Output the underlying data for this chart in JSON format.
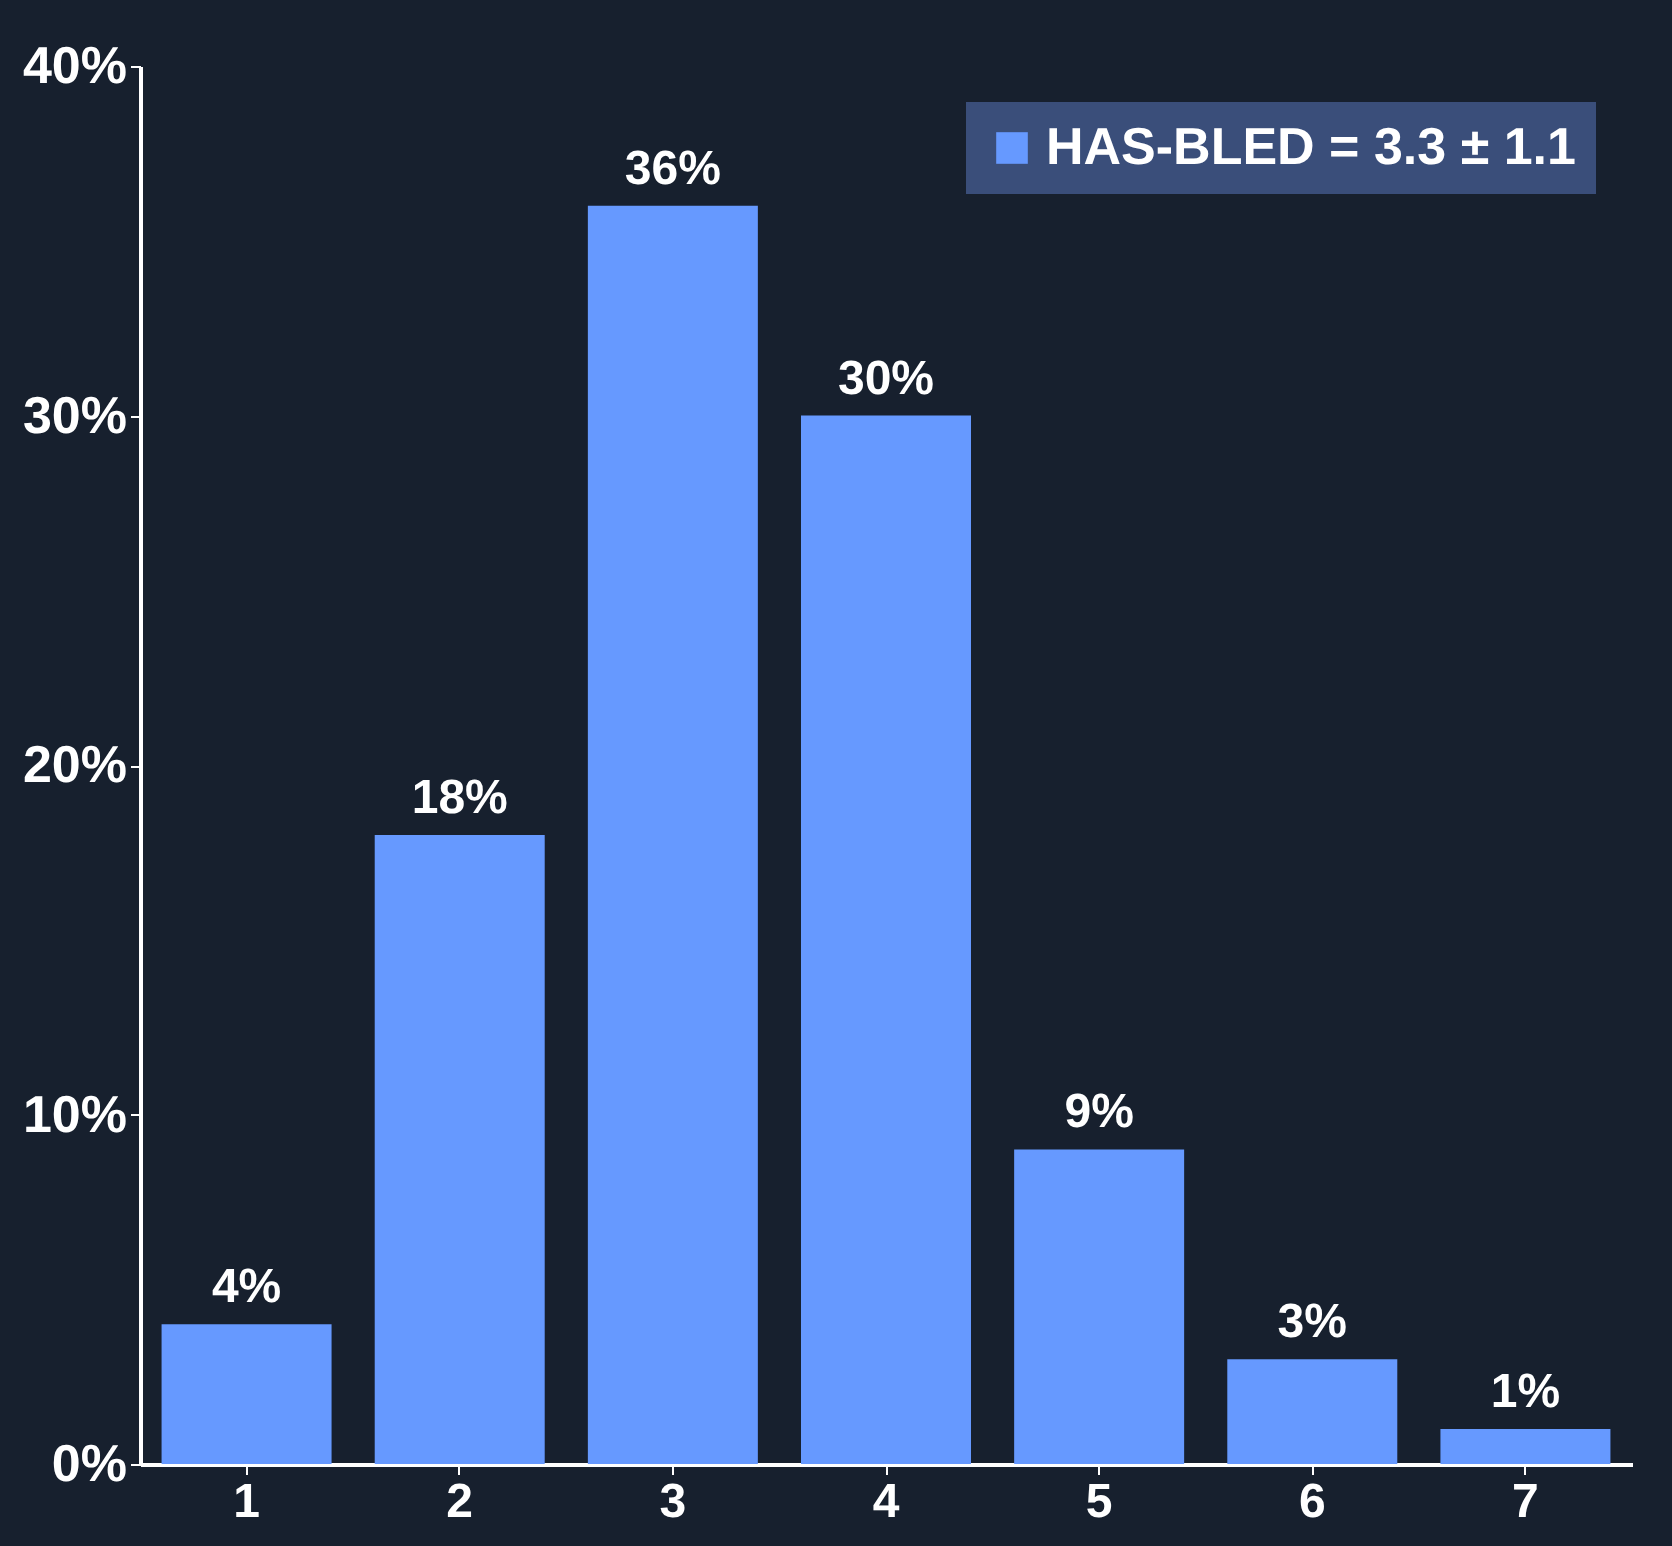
{
  "chart_data": {
    "type": "bar",
    "categories": [
      "1",
      "2",
      "3",
      "4",
      "5",
      "6",
      "7"
    ],
    "series": [
      {
        "name": "HAS-BLED = 3.3 ± 1.1",
        "color": "#6699ff",
        "values": [
          4,
          18,
          36,
          30,
          9,
          3,
          1
        ],
        "value_labels": [
          "4%",
          "18%",
          "36%",
          "30%",
          "9%",
          "3%",
          "1%"
        ]
      }
    ],
    "ylim": [
      0,
      40
    ],
    "yticks": [
      {
        "value": 0,
        "label": "0%"
      },
      {
        "value": 10,
        "label": "10%"
      },
      {
        "value": 20,
        "label": "20%"
      },
      {
        "value": 30,
        "label": "30%"
      },
      {
        "value": 40,
        "label": "40%"
      }
    ],
    "grid": false,
    "legend": "top right"
  }
}
